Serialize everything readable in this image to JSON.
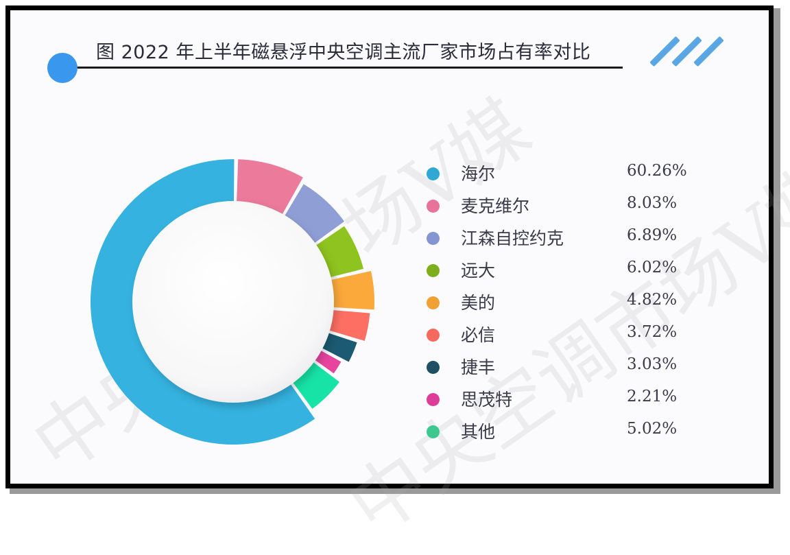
{
  "title": "图 2022 年上半年磁悬浮中央空调主流厂家市场占有率对比",
  "watermark_text": "中央空调市场V媒",
  "colors": {
    "title_dot": "#3a97ee",
    "deco_slashes": "#5aa6e4",
    "frame": "#000000"
  },
  "chart_data": {
    "type": "pie",
    "variant": "donut",
    "title": "图 2022 年上半年磁悬浮中央空调主流厂家市场占有率对比",
    "categories": [
      "海尔",
      "麦克维尔",
      "江森自控约克",
      "远大",
      "美的",
      "必信",
      "捷丰",
      "思茂特",
      "其他"
    ],
    "values": [
      60.26,
      8.03,
      6.89,
      6.02,
      4.82,
      3.72,
      3.03,
      2.21,
      5.02
    ],
    "unit": "%",
    "colors": [
      "#35b2e0",
      "#ec7a9a",
      "#8f9fd6",
      "#8fc31f",
      "#fba93a",
      "#fd6f63",
      "#1b5a72",
      "#e8449e",
      "#17e3a6"
    ],
    "legend_position": "right"
  },
  "legend": {
    "items": [
      {
        "label": "海尔",
        "value": "60.26%",
        "color": "#2fa8d3"
      },
      {
        "label": "麦克维尔",
        "value": "8.03%",
        "color": "#e8739a"
      },
      {
        "label": "江森自控约克",
        "value": "6.89%",
        "color": "#8595d2"
      },
      {
        "label": "远大",
        "value": "6.02%",
        "color": "#7fae1c"
      },
      {
        "label": "美的",
        "value": "4.82%",
        "color": "#f1a033"
      },
      {
        "label": "必信",
        "value": "3.72%",
        "color": "#f46a5e"
      },
      {
        "label": "捷丰",
        "value": "3.03%",
        "color": "#1f4f63"
      },
      {
        "label": "思茂特",
        "value": "2.21%",
        "color": "#dc3d98"
      },
      {
        "label": "其他",
        "value": "5.02%",
        "color": "#3dc890"
      }
    ]
  }
}
